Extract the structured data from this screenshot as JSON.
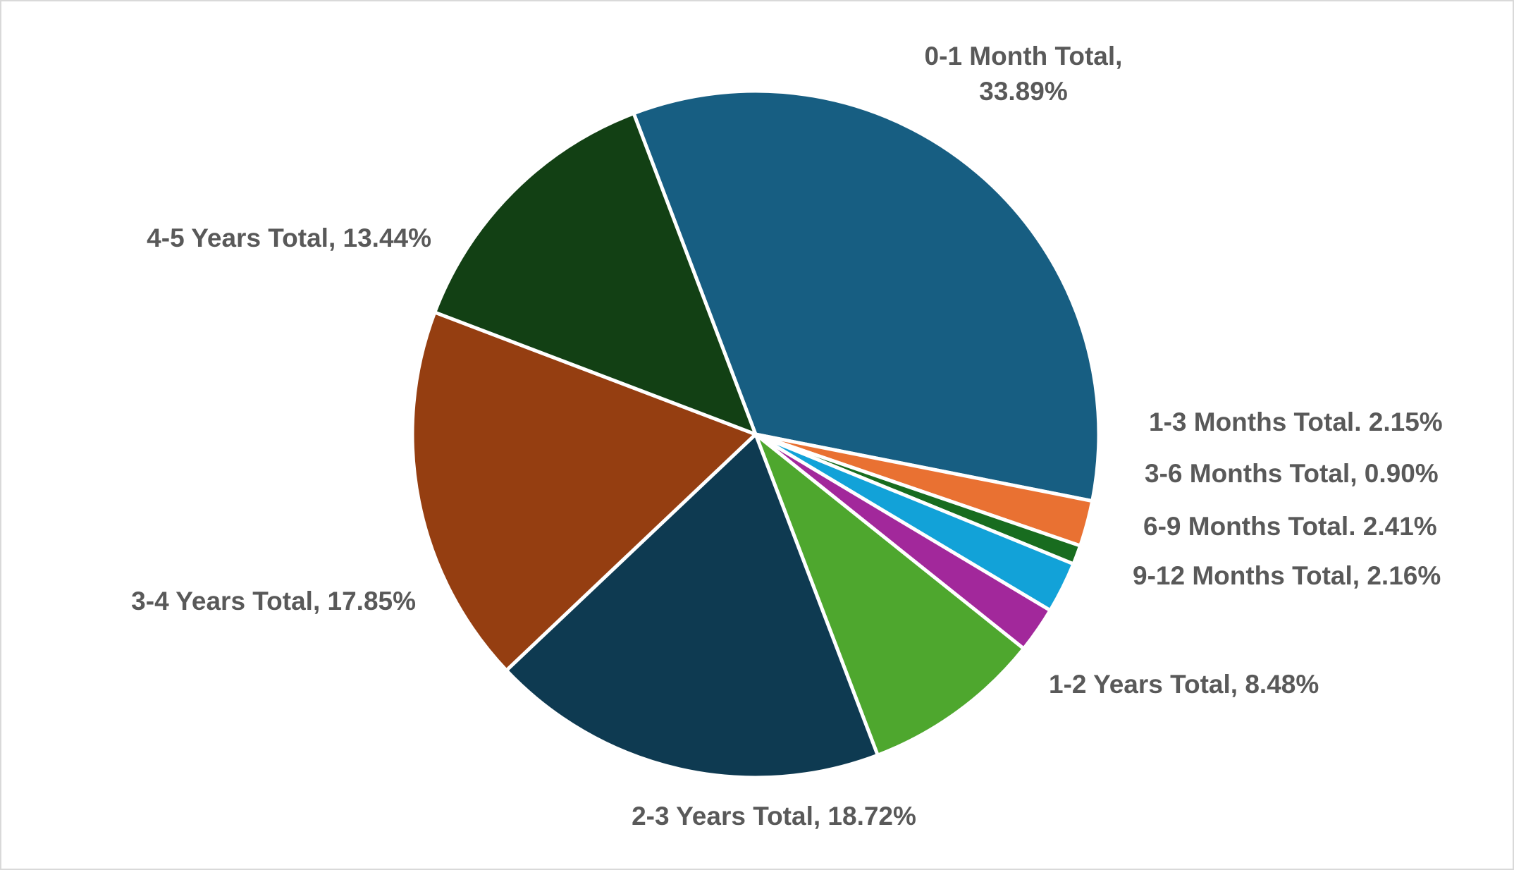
{
  "chart_data": {
    "type": "pie",
    "title": "",
    "start_angle_deg": 0,
    "direction": "clockwise",
    "slices": [
      {
        "label": "0-1 Month Total",
        "value": 33.89,
        "data_label_lines": [
          "0-1 Month Total,",
          "33.89%"
        ],
        "color": "#175E82"
      },
      {
        "label": "1-3 Months Total",
        "value": 2.15,
        "data_label_lines": [
          "1-3 Months Total. 2.15%"
        ],
        "color": "#E97132"
      },
      {
        "label": "3-6 Months Total",
        "value": 0.9,
        "data_label_lines": [
          "3-6 Months Total, 0.90%"
        ],
        "color": "#186C1F"
      },
      {
        "label": "6-9 Months Total",
        "value": 2.41,
        "data_label_lines": [
          "6-9 Months Total. 2.41%"
        ],
        "color": "#12A2D8"
      },
      {
        "label": "9-12 Months Total",
        "value": 2.16,
        "data_label_lines": [
          "9-12 Months Total, 2.16%"
        ],
        "color": "#A2289B"
      },
      {
        "label": "1-2 Years Total",
        "value": 8.48,
        "data_label_lines": [
          "1-2 Years Total, 8.48%"
        ],
        "color": "#4EA72E"
      },
      {
        "label": "2-3 Years Total",
        "value": 18.72,
        "data_label_lines": [
          "2-3 Years Total, 18.72%"
        ],
        "color": "#0E3A51"
      },
      {
        "label": "3-4 Years Total",
        "value": 17.85,
        "data_label_lines": [
          "3-4 Years Total, 17.85%"
        ],
        "color": "#953E11"
      },
      {
        "label": "4-5 Years Total",
        "value": 13.44,
        "data_label_lines": [
          "4-5 Years Total, 13.44%"
        ],
        "color": "#124014"
      }
    ],
    "legend": "none",
    "data_labels": "outside"
  }
}
